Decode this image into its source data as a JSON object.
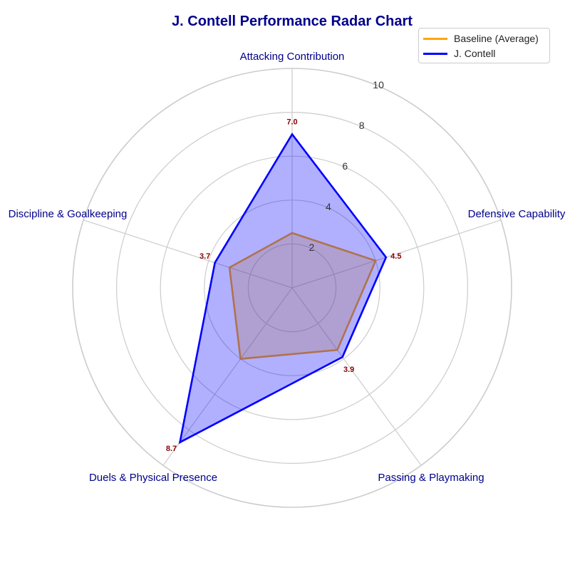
{
  "chart_data": {
    "type": "radar",
    "title": "J. Contell Performance Radar Chart",
    "axes": [
      "Attacking Contribution",
      "Defensive Capability",
      "Passing & Playmaking",
      "Duels & Physical Presence",
      "Discipline & Goalkeeping"
    ],
    "rlim": [
      0,
      10
    ],
    "radial_ticks": [
      2,
      4,
      6,
      8,
      10
    ],
    "grid": true,
    "legend_placement": "top-right",
    "series": [
      {
        "name": "Baseline (Average)",
        "values": [
          2.5,
          4.0,
          3.5,
          4.0,
          3.0
        ],
        "color": "#ffa500",
        "filled": true
      },
      {
        "name": "J. Contell",
        "values": [
          7.0,
          4.5,
          3.9,
          8.7,
          3.7
        ],
        "color": "#0000ff",
        "filled": true
      }
    ],
    "data_labels": [
      "7.0",
      "4.5",
      "3.9",
      "8.7",
      "3.7"
    ],
    "colors": {
      "title": "#00008b",
      "axis_label": "#00008b",
      "data_label": "#8b0000",
      "grid": "#cccccc",
      "player_fill": "#0000ff",
      "baseline_line": "#ffa500"
    }
  }
}
